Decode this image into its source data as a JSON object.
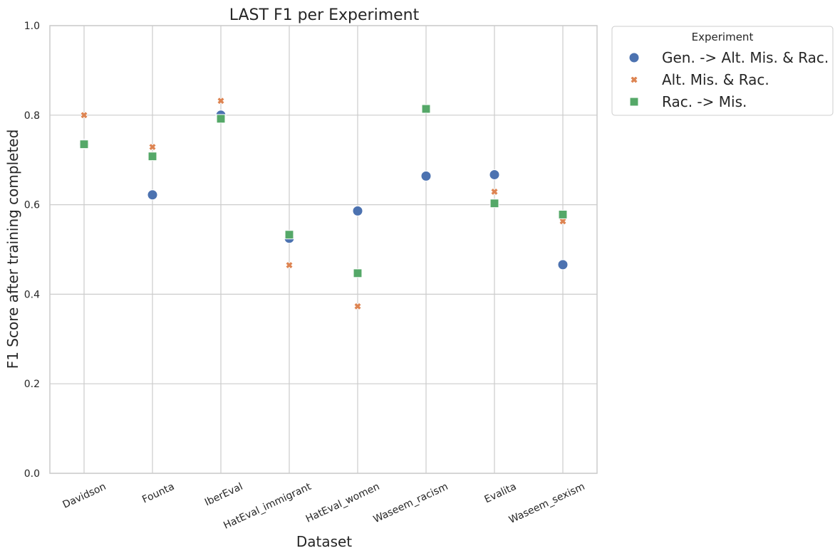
{
  "chart_data": {
    "type": "scatter",
    "title": "LAST F1 per Experiment",
    "xlabel": "Dataset",
    "ylabel": "F1 Score after training completed",
    "ylim": [
      0,
      1
    ],
    "yticks": [
      "0.0",
      "0.2",
      "0.4",
      "0.6",
      "0.8",
      "1.0"
    ],
    "grid": true,
    "categories": [
      "Davidson",
      "Founta",
      "IberEval",
      "HatEval_immigrant",
      "HatEval_women",
      "Waseem_racism",
      "Evalita",
      "Waseem_sexism"
    ],
    "legend": {
      "title": "Experiment",
      "placement": "outside-top-right"
    },
    "series": [
      {
        "name": "Gen. -> Alt. Mis. & Rac.",
        "marker": "circle",
        "color": "#4c72b0",
        "values": [
          0.735,
          0.622,
          0.8,
          0.525,
          0.586,
          0.664,
          0.667,
          0.466
        ]
      },
      {
        "name": "Alt. Mis. & Rac.",
        "marker": "x",
        "color": "#dd8452",
        "values": [
          0.8,
          0.729,
          0.832,
          0.465,
          0.373,
          0.815,
          0.629,
          0.563
        ]
      },
      {
        "name": "Rac. -> Mis.",
        "marker": "square",
        "color": "#55a868",
        "values": [
          0.735,
          0.708,
          0.792,
          0.533,
          0.447,
          0.814,
          0.603,
          0.578
        ]
      }
    ]
  }
}
